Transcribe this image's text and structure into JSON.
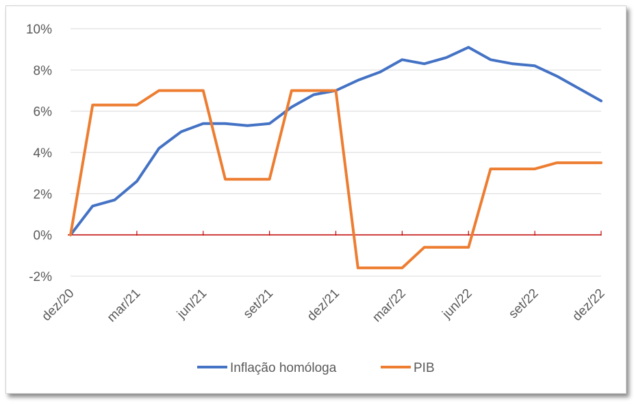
{
  "chart_data": {
    "type": "line",
    "title": "",
    "xlabel": "",
    "ylabel": "",
    "ylim": [
      -0.03,
      0.1
    ],
    "yticks": [
      -0.02,
      0.0,
      0.02,
      0.04,
      0.06,
      0.08,
      0.1
    ],
    "ytick_labels": [
      "-2%",
      "0%",
      "2%",
      "4%",
      "6%",
      "8%",
      "10%"
    ],
    "x": [
      "dez/20",
      "jan/21",
      "fev/21",
      "mar/21",
      "abr/21",
      "mai/21",
      "jun/21",
      "jul/21",
      "ago/21",
      "set/21",
      "out/21",
      "nov/21",
      "dez/21",
      "jan/22",
      "fev/22",
      "mar/22",
      "abr/22",
      "mai/22",
      "jun/22",
      "jul/22",
      "ago/22",
      "set/22",
      "out/22",
      "nov/22",
      "dez/22"
    ],
    "xtick_labels": [
      "dez/20",
      "mar/21",
      "jun/21",
      "set/21",
      "dez/21",
      "mar/22",
      "jun/22",
      "set/22",
      "dez/22"
    ],
    "grid": true,
    "legend_position": "bottom",
    "zero_line_color": "#c00000",
    "series": [
      {
        "name": "Inflação homóloga",
        "color": "#4472c4",
        "values": [
          0.0,
          0.014,
          0.017,
          0.026,
          0.042,
          0.05,
          0.054,
          0.054,
          0.053,
          0.054,
          0.062,
          0.068,
          0.07,
          0.075,
          0.079,
          0.085,
          0.083,
          0.086,
          0.091,
          0.085,
          0.083,
          0.082,
          0.077,
          0.071,
          0.065
        ]
      },
      {
        "name": "PIB",
        "color": "#ed7d31",
        "step": true,
        "values": [
          0.0,
          0.063,
          0.063,
          0.063,
          0.07,
          0.07,
          0.07,
          0.027,
          0.027,
          0.027,
          0.07,
          0.07,
          0.07,
          -0.016,
          -0.016,
          -0.016,
          -0.006,
          -0.006,
          -0.006,
          0.032,
          0.032,
          0.032,
          0.035,
          0.035,
          0.035
        ]
      }
    ]
  }
}
